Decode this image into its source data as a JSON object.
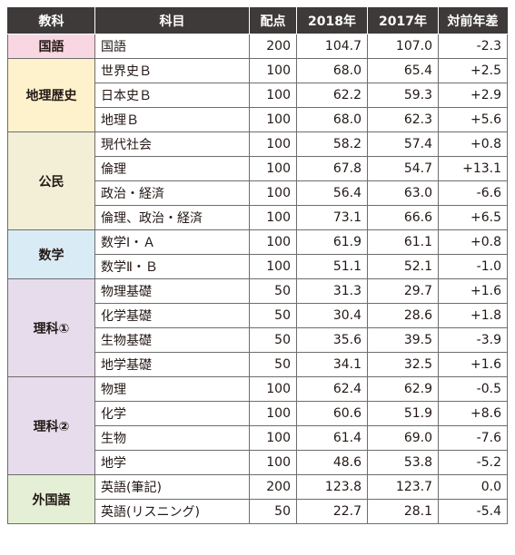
{
  "headers": [
    "教科",
    "科目",
    "配点",
    "2018年",
    "2017年",
    "対前年差"
  ],
  "colors": {
    "header_bg": "#3e3a39",
    "kokugo": "#f8d7e3",
    "chiri_rekishi": "#fdf2cc",
    "komin": "#f3efd6",
    "sugaku": "#d9ecf6",
    "rika1": "#e6dcec",
    "rika2": "#e6dcec",
    "gaikokugo": "#e5efd5"
  },
  "groups": [
    {
      "name": "国語",
      "color_key": "kokugo",
      "rows": [
        {
          "course": "国語",
          "points": "200",
          "y2018": "104.7",
          "y2017": "107.0",
          "diff": "-2.3"
        }
      ]
    },
    {
      "name": "地理歴史",
      "color_key": "chiri_rekishi",
      "rows": [
        {
          "course": "世界史Ｂ",
          "points": "100",
          "y2018": "68.0",
          "y2017": "65.4",
          "diff": "+2.5"
        },
        {
          "course": "日本史Ｂ",
          "points": "100",
          "y2018": "62.2",
          "y2017": "59.3",
          "diff": "+2.9"
        },
        {
          "course": "地理Ｂ",
          "points": "100",
          "y2018": "68.0",
          "y2017": "62.3",
          "diff": "+5.6"
        }
      ]
    },
    {
      "name": "公民",
      "color_key": "komin",
      "rows": [
        {
          "course": "現代社会",
          "points": "100",
          "y2018": "58.2",
          "y2017": "57.4",
          "diff": "+0.8"
        },
        {
          "course": "倫理",
          "points": "100",
          "y2018": "67.8",
          "y2017": "54.7",
          "diff": "+13.1"
        },
        {
          "course": "政治・経済",
          "points": "100",
          "y2018": "56.4",
          "y2017": "63.0",
          "diff": "-6.6"
        },
        {
          "course": "倫理、政治・経済",
          "points": "100",
          "y2018": "73.1",
          "y2017": "66.6",
          "diff": "+6.5"
        }
      ]
    },
    {
      "name": "数学",
      "color_key": "sugaku",
      "rows": [
        {
          "course": "数学Ⅰ・Ａ",
          "points": "100",
          "y2018": "61.9",
          "y2017": "61.1",
          "diff": "+0.8"
        },
        {
          "course": "数学Ⅱ・Ｂ",
          "points": "100",
          "y2018": "51.1",
          "y2017": "52.1",
          "diff": "-1.0"
        }
      ]
    },
    {
      "name": "理科①",
      "color_key": "rika1",
      "rows": [
        {
          "course": "物理基礎",
          "points": "50",
          "y2018": "31.3",
          "y2017": "29.7",
          "diff": "+1.6"
        },
        {
          "course": "化学基礎",
          "points": "50",
          "y2018": "30.4",
          "y2017": "28.6",
          "diff": "+1.8"
        },
        {
          "course": "生物基礎",
          "points": "50",
          "y2018": "35.6",
          "y2017": "39.5",
          "diff": "-3.9"
        },
        {
          "course": "地学基礎",
          "points": "50",
          "y2018": "34.1",
          "y2017": "32.5",
          "diff": "+1.6"
        }
      ]
    },
    {
      "name": "理科②",
      "color_key": "rika2",
      "rows": [
        {
          "course": "物理",
          "points": "100",
          "y2018": "62.4",
          "y2017": "62.9",
          "diff": "-0.5"
        },
        {
          "course": "化学",
          "points": "100",
          "y2018": "60.6",
          "y2017": "51.9",
          "diff": "+8.6"
        },
        {
          "course": "生物",
          "points": "100",
          "y2018": "61.4",
          "y2017": "69.0",
          "diff": "-7.6"
        },
        {
          "course": "地学",
          "points": "100",
          "y2018": "48.6",
          "y2017": "53.8",
          "diff": "-5.2"
        }
      ]
    },
    {
      "name": "外国語",
      "color_key": "gaikokugo",
      "rows": [
        {
          "course": "英語(筆記)",
          "points": "200",
          "y2018": "123.8",
          "y2017": "123.7",
          "diff": "0.0"
        },
        {
          "course": "英語(リスニング)",
          "points": "50",
          "y2018": "22.7",
          "y2017": "28.1",
          "diff": "-5.4"
        }
      ]
    }
  ]
}
